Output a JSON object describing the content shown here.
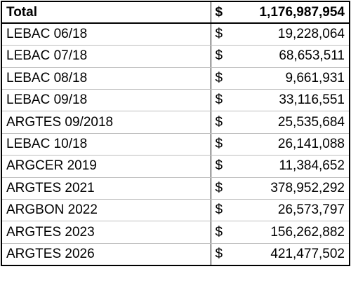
{
  "table": {
    "header": [
      "Total",
      "$",
      "1,176,987,954"
    ],
    "rows": [
      [
        "LEBAC 06/18",
        "$",
        "19,228,064"
      ],
      [
        "LEBAC 07/18",
        "$",
        "68,653,511"
      ],
      [
        "LEBAC 08/18",
        "$",
        "9,661,931"
      ],
      [
        "LEBAC 09/18",
        "$",
        "33,116,551"
      ],
      [
        "ARGTES 09/2018",
        "$",
        "25,535,684"
      ],
      [
        "LEBAC 10/18",
        "$",
        "26,141,088"
      ],
      [
        "ARGCER 2019",
        "$",
        "11,384,652"
      ],
      [
        "ARGTES 2021",
        "$",
        "378,952,292"
      ],
      [
        "ARGBON 2022",
        "$",
        "26,573,797"
      ],
      [
        "ARGTES 2023",
        "$",
        "156,262,882"
      ],
      [
        "ARGTES 2026",
        "$",
        "421,477,502"
      ]
    ]
  }
}
